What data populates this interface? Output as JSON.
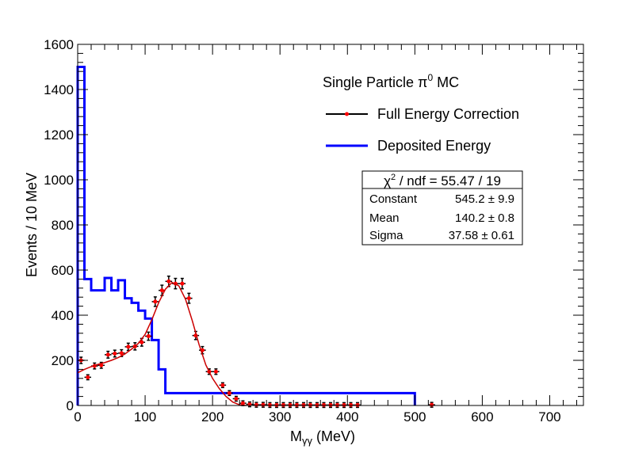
{
  "chart_data": {
    "type": "histogram",
    "title": "",
    "xlabel": "M",
    "xlabel_sub": "γγ",
    "xlabel_unit": " (MeV)",
    "ylabel": "Events / 10 MeV",
    "xlim": [
      0,
      750
    ],
    "ylim": [
      0,
      1600
    ],
    "x_ticks": [
      0,
      100,
      200,
      300,
      400,
      500,
      600,
      700
    ],
    "y_ticks": [
      0,
      200,
      400,
      600,
      800,
      1000,
      1200,
      1400,
      1600
    ],
    "x_ticks_labels": [
      "0",
      "100",
      "200",
      "300",
      "400",
      "500",
      "600",
      "700"
    ],
    "y_ticks_labels": [
      "0",
      "200",
      "400",
      "600",
      "800",
      "1000",
      "1200",
      "1400",
      "1600"
    ],
    "legend": {
      "header_text": "Single Particle π",
      "header_sup": "0",
      "header_suffix": " MC",
      "entries": [
        "Full Energy Correction",
        "Deposited Energy"
      ]
    },
    "series": [
      {
        "name": "Deposited Energy",
        "kind": "step",
        "color": "#0000ff",
        "bin_edges": [
          0,
          10,
          20,
          30,
          40,
          50,
          60,
          70,
          80,
          90,
          100,
          110,
          120,
          130,
          500
        ],
        "values": [
          1500,
          560,
          510,
          510,
          565,
          510,
          555,
          475,
          455,
          420,
          385,
          290,
          160,
          55
        ]
      },
      {
        "name": "Full Energy Correction",
        "kind": "points",
        "color": "#ff0000",
        "x": [
          5,
          15,
          25,
          35,
          45,
          55,
          65,
          75,
          85,
          95,
          105,
          115,
          125,
          135,
          145,
          155,
          165,
          175,
          185,
          195,
          205,
          215,
          225,
          235,
          245,
          255,
          265,
          275,
          285,
          295,
          305,
          315,
          325,
          335,
          345,
          355,
          365,
          375,
          385,
          395,
          405,
          415,
          525
        ],
        "y": [
          200,
          125,
          175,
          178,
          225,
          230,
          232,
          260,
          262,
          280,
          307,
          460,
          510,
          550,
          540,
          540,
          475,
          310,
          245,
          150,
          150,
          90,
          55,
          30,
          10,
          5,
          3,
          3,
          2,
          2,
          2,
          2,
          2,
          2,
          2,
          2,
          2,
          2,
          2,
          2,
          2,
          2,
          3
        ],
        "err": [
          14,
          11,
          13,
          13,
          15,
          15,
          15,
          16,
          16,
          17,
          18,
          21,
          23,
          23,
          23,
          23,
          22,
          18,
          16,
          12,
          12,
          9,
          7,
          5,
          3,
          2,
          2,
          2,
          1,
          1,
          1,
          1,
          1,
          1,
          1,
          1,
          1,
          1,
          1,
          1,
          1,
          1,
          2
        ]
      },
      {
        "name": "fit",
        "kind": "line",
        "color": "#cc0000",
        "x": [
          0,
          10,
          20,
          30,
          40,
          50,
          60,
          70,
          80,
          90,
          100,
          110,
          120,
          130,
          140,
          150,
          160,
          170,
          180,
          190,
          200,
          210,
          220,
          230,
          240,
          250
        ],
        "y": [
          145,
          160,
          172,
          182,
          190,
          200,
          212,
          228,
          250,
          275,
          315,
          380,
          455,
          515,
          545,
          530,
          470,
          375,
          270,
          180,
          120,
          75,
          40,
          15,
          3,
          0
        ]
      }
    ],
    "stats": {
      "title_text": "χ",
      "title_sup": "2",
      "title_rest": " / ndf = 55.47 / 19",
      "rows": [
        {
          "label": "Constant",
          "value": "545.2 ± 9.9"
        },
        {
          "label": "Mean",
          "value": "140.2 ± 0.8"
        },
        {
          "label": "Sigma",
          "value": "37.58 ± 0.61"
        }
      ]
    }
  }
}
